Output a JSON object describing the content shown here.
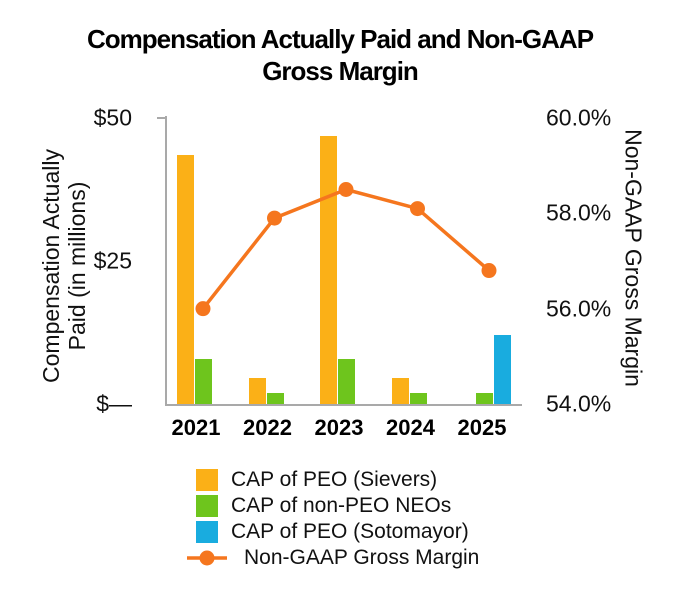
{
  "chart_data": {
    "type": "combo-bar-line",
    "title": "Compensation Actually Paid and Non-GAAP Gross Margin",
    "title_lines": [
      "Compensation Actually Paid and Non-GAAP",
      "Gross Margin"
    ],
    "categories": [
      "2021",
      "2022",
      "2023",
      "2024",
      "2025"
    ],
    "series": [
      {
        "name": "CAP of PEO (Sievers)",
        "type": "bar",
        "color": "#FBB017",
        "axis": "left",
        "values": [
          43.5,
          4.5,
          46.9,
          4.5,
          null
        ]
      },
      {
        "name": "CAP of non-PEO NEOs",
        "type": "bar",
        "color": "#6EC51D",
        "axis": "left",
        "values": [
          7.9,
          1.9,
          7.9,
          1.9,
          1.9
        ]
      },
      {
        "name": "CAP of PEO (Sotomayor)",
        "type": "bar",
        "color": "#19ACDF",
        "axis": "left",
        "values": [
          null,
          null,
          null,
          null,
          12.0
        ]
      },
      {
        "name": "Non-GAAP Gross Margin",
        "type": "line",
        "color": "#F5761E",
        "axis": "right",
        "values": [
          56.0,
          57.9,
          58.5,
          58.1,
          56.8
        ]
      }
    ],
    "left_axis": {
      "title": "Compensation Actually Paid (in millions)",
      "title_lines": [
        "Compensation Actually",
        "Paid (in millions)"
      ],
      "ticks": [
        "$50",
        "$25",
        "$—"
      ],
      "tick_values": [
        50,
        25,
        0
      ],
      "min": 0,
      "max": 50
    },
    "right_axis": {
      "title": "Non-GAAP Gross Margin",
      "ticks": [
        "60.0%",
        "58.0%",
        "56.0%",
        "54.0%"
      ],
      "tick_values": [
        60,
        58,
        56,
        54
      ],
      "min": 54,
      "max": 60
    },
    "legend_position": "bottom",
    "colors": {
      "axis_line": "#A9A9A9",
      "text": "#111111",
      "title_text": "#000000"
    }
  }
}
